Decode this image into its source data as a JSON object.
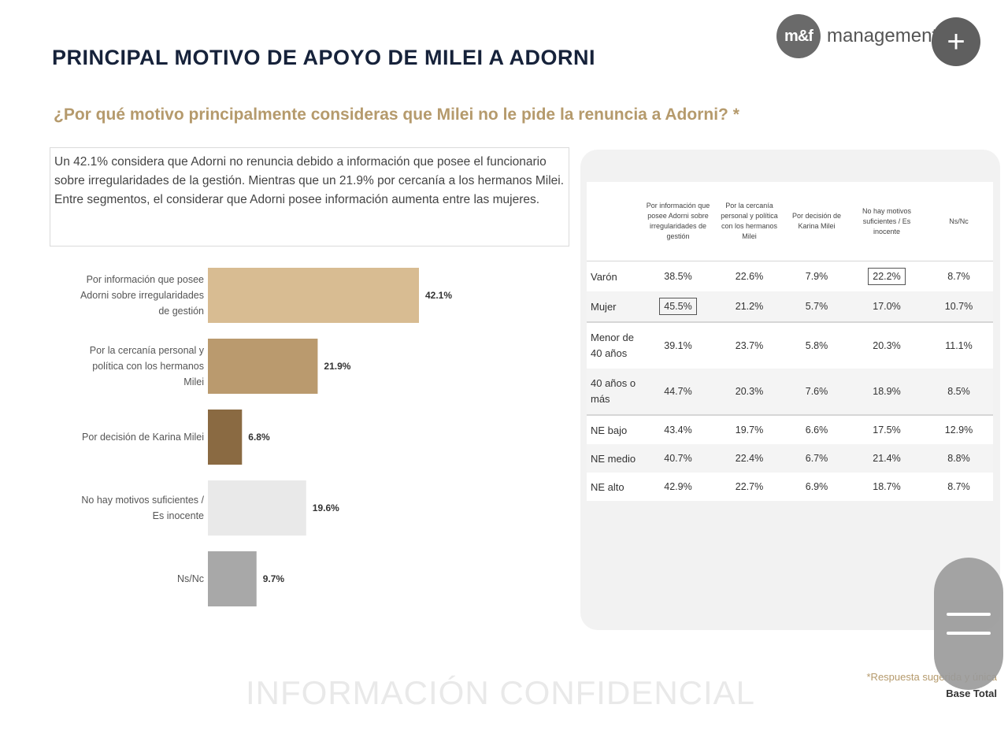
{
  "title": "PRINCIPAL MOTIVO DE APOYO DE MILEI A ADORNI",
  "logo": {
    "badge": "m&f",
    "text": "management & fit"
  },
  "fab_plus_label": "+",
  "question": "¿Por qué motivo principalmente consideras que Milei no le pide la renuncia a Adorni? *",
  "summary": {
    "line1": "Un 42.1% considera que Adorni no renuncia debido a información que posee el funcionario sobre irregularidades de la gestión. Mientras que un 21.9% por cercanía a los hermanos Milei.",
    "line2": "Entre segmentos, el considerar que Adorni posee información aumenta entre las mujeres."
  },
  "chart_data": {
    "type": "bar",
    "orientation": "horizontal",
    "categories": [
      "Por información que posee Adorni sobre irregularidades de gestión",
      "Por la cercanía personal y política con los hermanos Milei",
      "Por decisión de Karina Milei",
      "No hay motivos suficientes / Es inocente",
      "Ns/Nc"
    ],
    "category_lines": [
      [
        "Por información que posee",
        "Adorni sobre irregularidades",
        "de gestión"
      ],
      [
        "Por la cercanía personal y",
        "política con los hermanos",
        "Milei"
      ],
      [
        "Por decisión de Karina Milei"
      ],
      [
        "No hay motivos suficientes /",
        "Es inocente"
      ],
      [
        "Ns/Nc"
      ]
    ],
    "values": [
      42.1,
      21.9,
      6.8,
      19.6,
      9.7
    ],
    "value_labels": [
      "42.1%",
      "21.9%",
      "6.8%",
      "19.6%",
      "9.7%"
    ],
    "colors": [
      "#d8bc92",
      "#ba9a6e",
      "#8a6a42",
      "#e9e9e9",
      "#a8a8a8"
    ],
    "xlim": [
      0,
      42.1
    ],
    "grid": false
  },
  "table": {
    "headers": [
      "",
      "Por información que posee Adorni sobre irregularidades de gestión",
      "Por la cercanía personal y política con los hermanos Milei",
      "Por decisión de Karina Milei",
      "No hay motivos suficientes / Es inocente",
      "Ns/Nc"
    ],
    "rows": [
      {
        "label": "Varón",
        "values": [
          "38.5%",
          "22.6%",
          "7.9%",
          "22.2%",
          "8.7%"
        ]
      },
      {
        "label": "Mujer",
        "values": [
          "45.5%",
          "21.2%",
          "5.7%",
          "17.0%",
          "10.7%"
        ]
      },
      {
        "label": "Menor de 40 años",
        "values": [
          "39.1%",
          "23.7%",
          "5.8%",
          "20.3%",
          "11.1%"
        ]
      },
      {
        "label": "40 años o más",
        "values": [
          "44.7%",
          "20.3%",
          "7.6%",
          "18.9%",
          "8.5%"
        ]
      },
      {
        "label": "NE bajo",
        "values": [
          "43.4%",
          "19.7%",
          "6.6%",
          "17.5%",
          "12.9%"
        ]
      },
      {
        "label": "NE medio",
        "values": [
          "40.7%",
          "22.4%",
          "6.7%",
          "21.4%",
          "8.8%"
        ]
      },
      {
        "label": "NE alto",
        "values": [
          "42.9%",
          "22.7%",
          "6.9%",
          "18.7%",
          "8.7%"
        ]
      }
    ]
  },
  "watermark": "INFORMACIÓN CONFIDENCIAL",
  "footnote": {
    "note": "*Respuesta sugerida y única",
    "base": "Base Total"
  }
}
